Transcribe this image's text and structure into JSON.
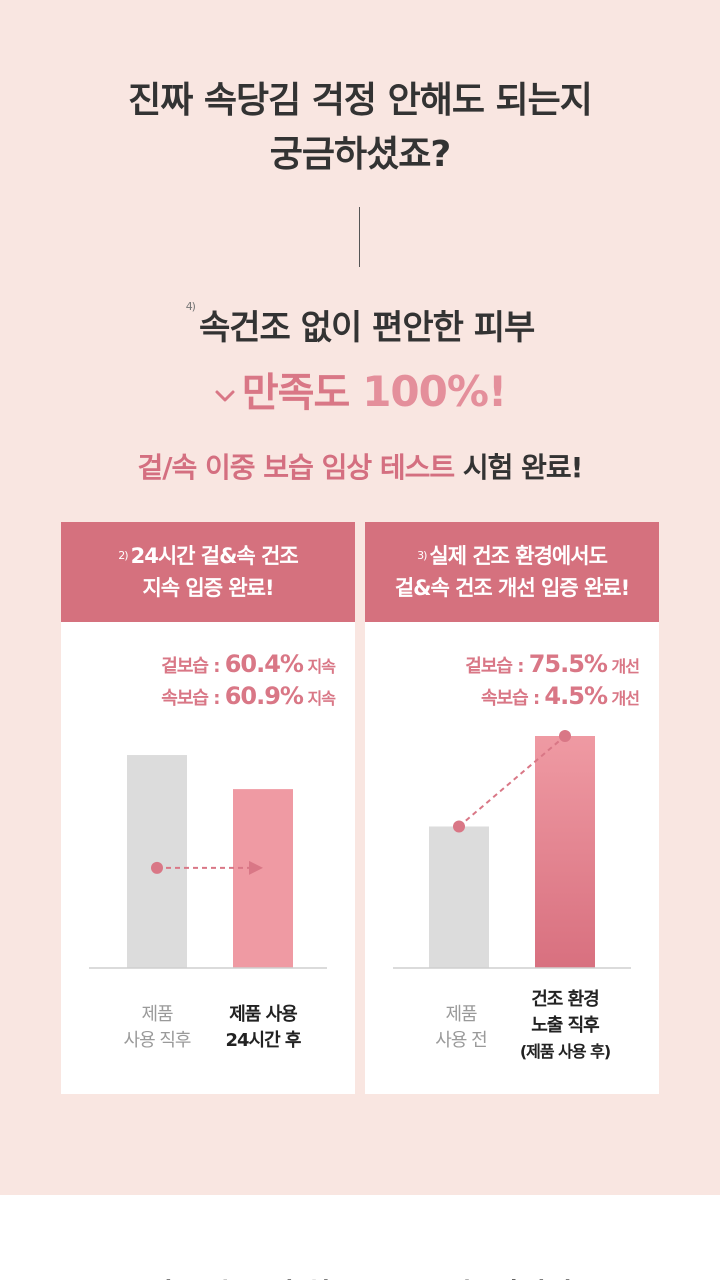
{
  "headline": {
    "line1": "진짜 속당김 걱정 안해도 되는지",
    "line2": "궁금하셨죠?"
  },
  "sub_headline": {
    "footnote": "4)",
    "text": "속건조 없이 편안한 피부"
  },
  "satisfaction": {
    "label": "만족도",
    "value": "100%!"
  },
  "test_line": {
    "highlight": "겉/속 이중 보습 임상 테스트",
    "rest": "시험 완료!"
  },
  "colors": {
    "background": "#f9e6e1",
    "accent": "#d5717e",
    "gray_bar": "#dcdcdc",
    "pink_bar": "#ef9aa3"
  },
  "chart_data": [
    {
      "type": "bar",
      "footnote": "2)",
      "title": [
        "24시간 겉&속 건조",
        "지속 입증 완료!"
      ],
      "stats": [
        {
          "label": "겉보습 : ",
          "value": "60.4%",
          "suffix": " 지속"
        },
        {
          "label": "속보습 : ",
          "value": "60.9%",
          "suffix": " 지속"
        }
      ],
      "categories": [
        [
          "제품",
          "사용 직후"
        ],
        [
          "제품 사용",
          "24시간 후"
        ]
      ],
      "values": [
        100,
        84
      ],
      "ylim": [
        0,
        108
      ],
      "xlabel": "",
      "ylabel": ""
    },
    {
      "type": "bar",
      "footnote": "3)",
      "title": [
        "실제 건조 환경에서도",
        "겉&속 건조 개선 입증 완료!"
      ],
      "stats": [
        {
          "label": "겉보습 : ",
          "value": "75.5%",
          "suffix": " 개선"
        },
        {
          "label": "속보습 : ",
          "value": "4.5%",
          "suffix": " 개선"
        }
      ],
      "categories": [
        [
          "제품",
          "사용 전"
        ],
        [
          "건조 환경",
          "노출 직후",
          "(제품 사용 후)"
        ]
      ],
      "values": [
        61,
        100
      ],
      "ylim": [
        0,
        100
      ],
      "xlabel": "",
      "ylabel": ""
    }
  ],
  "bottom_peek": "피부 속부터 차오르는 보습 입니다"
}
